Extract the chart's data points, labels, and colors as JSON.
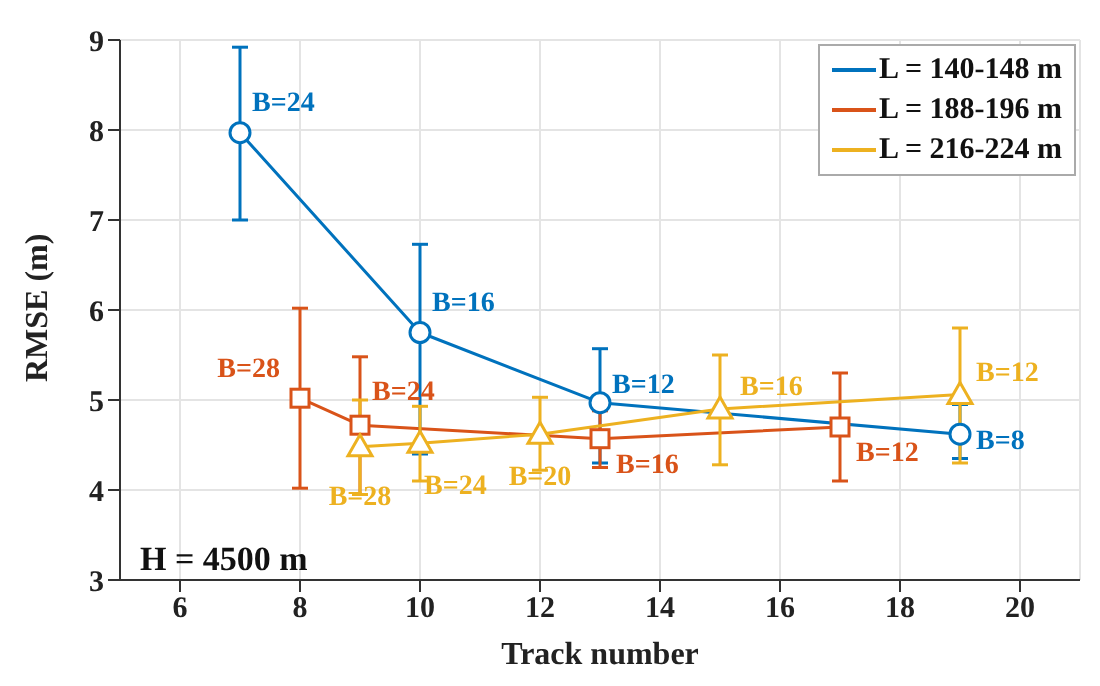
{
  "chart_data": {
    "type": "line",
    "xlabel": "Track number",
    "ylabel": "RMSE (m)",
    "xlim": [
      5,
      21
    ],
    "xticks": [
      6,
      8,
      10,
      12,
      14,
      16,
      18,
      20
    ],
    "ylim": [
      3,
      9
    ],
    "yticks": [
      3,
      4,
      5,
      6,
      7,
      8,
      9
    ],
    "grid": true,
    "legend": "top right",
    "series": [
      {
        "name": "L = 140-148 m",
        "color": "#0072bd",
        "marker": "circle",
        "x": [
          7,
          10,
          13,
          19
        ],
        "values": [
          7.97,
          5.75,
          4.97,
          4.62
        ],
        "errors": [
          [
            7.0,
            8.92
          ],
          [
            4.4,
            6.73
          ],
          [
            4.3,
            5.57
          ],
          [
            4.35,
            4.95
          ]
        ]
      },
      {
        "name": "L = 188-196 m",
        "color": "#d95319",
        "marker": "square",
        "x": [
          8,
          9,
          13,
          17
        ],
        "values": [
          5.02,
          4.72,
          4.57,
          4.7
        ],
        "errors": [
          [
            4.02,
            6.02
          ],
          [
            3.95,
            5.48
          ],
          [
            4.25,
            4.88
          ],
          [
            4.1,
            5.3
          ]
        ]
      },
      {
        "name": "L = 216-224 m",
        "color": "#edb120",
        "marker": "triangle",
        "x": [
          9,
          10,
          12,
          15,
          19
        ],
        "values": [
          4.48,
          4.52,
          4.62,
          4.9,
          5.06
        ],
        "errors": [
          [
            3.95,
            5.0
          ],
          [
            4.1,
            4.93
          ],
          [
            4.22,
            5.03
          ],
          [
            4.28,
            5.5
          ],
          [
            4.3,
            5.8
          ]
        ]
      }
    ],
    "annotations": [
      {
        "text": "B=24",
        "x": 7,
        "y": 7.97
      },
      {
        "text": "B=16",
        "x": 10,
        "y": 5.75
      },
      {
        "text": "B=12",
        "x": 13,
        "y": 4.97
      },
      {
        "text": "B=8",
        "x": 19,
        "y": 4.62
      },
      {
        "text": "B=28",
        "x": 8,
        "y": 5.02
      },
      {
        "text": "B=24",
        "x": 9,
        "y": 4.72
      },
      {
        "text": "B=16",
        "x": 13,
        "y": 4.57
      },
      {
        "text": "B=12",
        "x": 17,
        "y": 4.7
      },
      {
        "text": "B=28",
        "x": 9,
        "y": 4.48
      },
      {
        "text": "B=24",
        "x": 10,
        "y": 4.52
      },
      {
        "text": "B=20",
        "x": 12,
        "y": 4.62
      },
      {
        "text": "B=16",
        "x": 15,
        "y": 4.9
      },
      {
        "text": "B=12",
        "x": 19,
        "y": 5.06
      },
      "H = 4500 m"
    ]
  }
}
